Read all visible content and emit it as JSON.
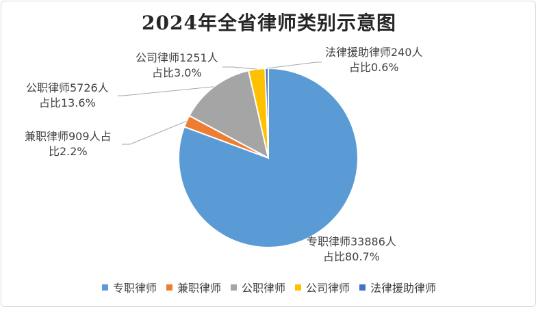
{
  "chart_data": {
    "type": "pie",
    "title": "2024年全省律师类别示意图",
    "series": [
      {
        "slices": [
          {
            "name": "专职律师",
            "value": 33886,
            "percent": 80.7,
            "color": "#5b9bd5",
            "label_lines": [
              "专职律师33886人",
              "占比80.7%"
            ]
          },
          {
            "name": "兼职律师",
            "value": 909,
            "percent": 2.2,
            "color": "#ed7d31",
            "label_lines": [
              "兼职律师909人占",
              "比2.2%"
            ]
          },
          {
            "name": "公职律师",
            "value": 5726,
            "percent": 13.6,
            "color": "#a5a5a5",
            "label_lines": [
              "公职律师5726人",
              "占比13.6%"
            ]
          },
          {
            "name": "公司律师",
            "value": 1251,
            "percent": 3.0,
            "color": "#ffc000",
            "label_lines": [
              "公司律师1251人",
              "占比3.0%"
            ]
          },
          {
            "name": "法律援助律师",
            "value": 240,
            "percent": 0.6,
            "color": "#4472c4",
            "label_lines": [
              "法律援助律师240人",
              "占比0.6%"
            ]
          }
        ]
      }
    ],
    "legend_position": "bottom"
  }
}
